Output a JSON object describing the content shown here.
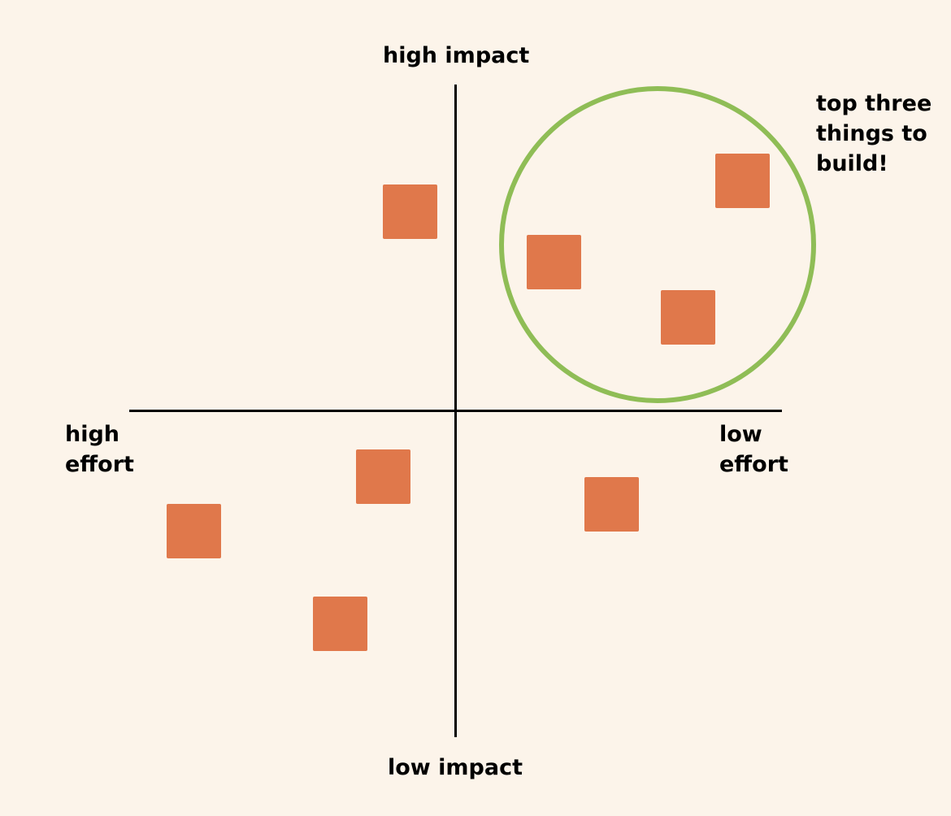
{
  "labels": {
    "top": "high impact",
    "bottom": "low impact",
    "left": [
      "high",
      "effort"
    ],
    "right": [
      "low",
      "effort"
    ]
  },
  "annotation": {
    "lines": [
      "top three",
      "things to",
      "build!"
    ]
  },
  "notes_total": 8,
  "notes_in_circle": 3,
  "colors": {
    "background": "#fcf4ea",
    "note": "#e0784b",
    "circle": "#8fbd56",
    "axis": "#000000",
    "text": "#000000"
  }
}
